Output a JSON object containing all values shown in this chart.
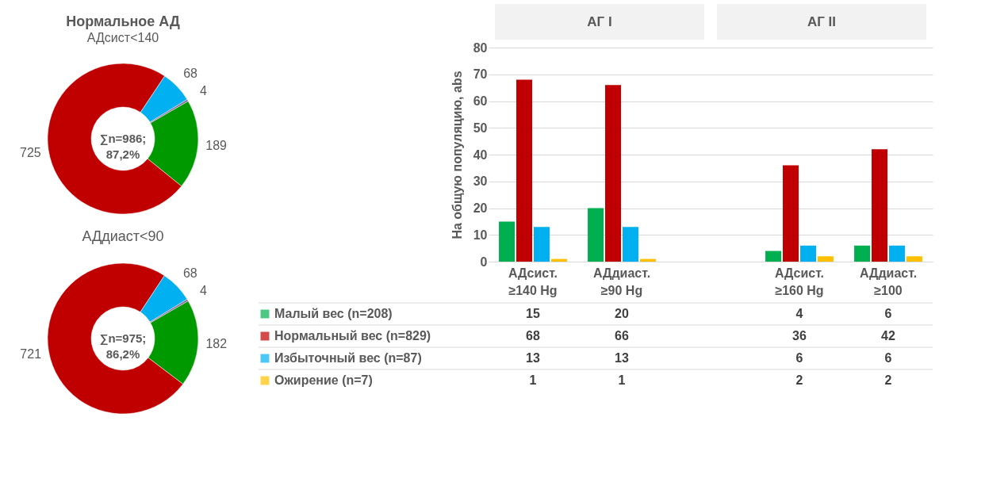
{
  "chart_data": [
    {
      "type": "donut",
      "title": "Нормальное АД",
      "subtitle": "АДсист<140",
      "categories": [
        null,
        null,
        null,
        null
      ],
      "values": [
        189,
        725,
        68,
        4
      ],
      "colors": [
        "#009900",
        "#c00000",
        "#00b0f0",
        "#8064a2"
      ],
      "data_labels": true,
      "annotations": [
        "∑n=986;\n87,2%"
      ]
    },
    {
      "type": "donut",
      "title": "АДдиаст<90",
      "categories": [
        null,
        null,
        null,
        null
      ],
      "values": [
        182,
        721,
        68,
        4
      ],
      "colors": [
        "#009900",
        "#c00000",
        "#00b0f0",
        "#8064a2"
      ],
      "data_labels": true,
      "annotations": [
        "∑n=975;\n86,2%"
      ]
    },
    {
      "type": "bar",
      "categories": [
        "АДсист.\n≥140 Hg",
        "АДдиаст.\n≥90 Hg",
        null,
        "АДсист.\n≥160 Hg",
        "АДдиаст.\n≥100"
      ],
      "series": [
        {
          "name": "Малый вес (n=208)",
          "color": "#00b050",
          "values": [
            15,
            20,
            null,
            4,
            6
          ]
        },
        {
          "name": "Нормальный вес (n=829)",
          "color": "#c00000",
          "values": [
            68,
            66,
            null,
            36,
            42
          ]
        },
        {
          "name": "Избыточный вес (n=87)",
          "color": "#00b0f0",
          "values": [
            13,
            13,
            null,
            6,
            6
          ]
        },
        {
          "name": "Ожирение (n=7)",
          "color": "#ffc000",
          "values": [
            1,
            1,
            null,
            2,
            2
          ]
        }
      ],
      "ylabel": "На общую популяцию, abs",
      "ylim": [
        0,
        80
      ],
      "yticks": [
        0,
        10,
        20,
        30,
        40,
        50,
        60,
        70,
        80
      ],
      "grid": "y",
      "legend": "bottom",
      "data_labels": true,
      "annotations": [
        "АГ I",
        "АГ II"
      ]
    }
  ]
}
